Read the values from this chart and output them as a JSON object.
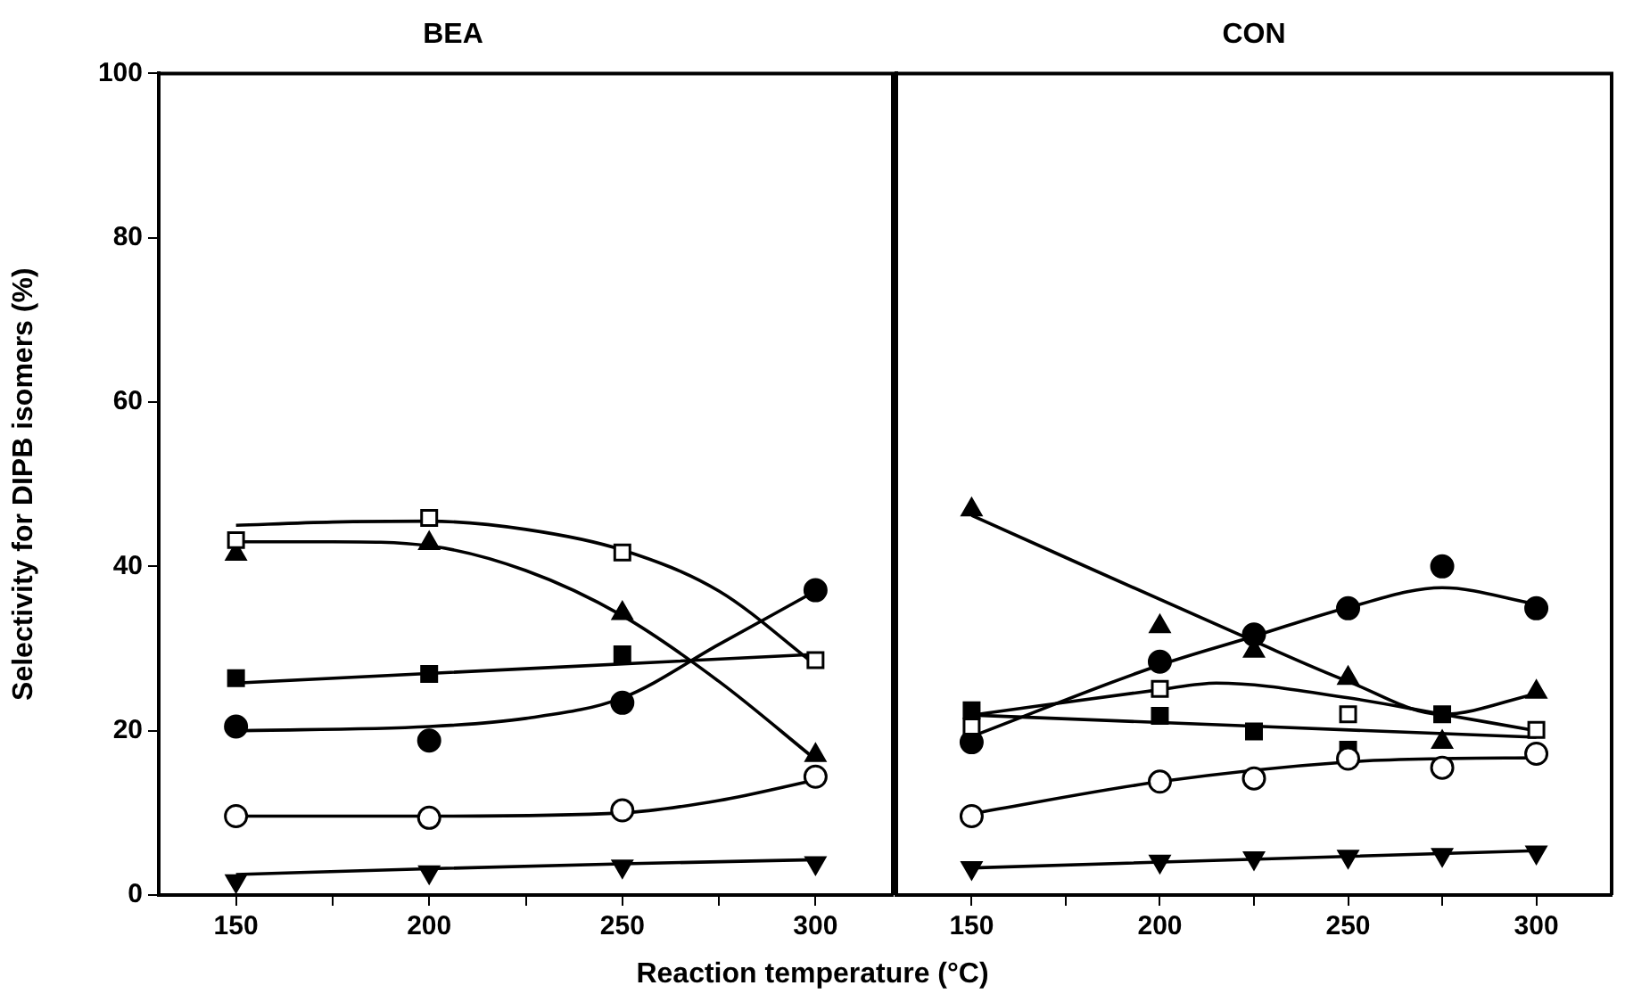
{
  "chart_data": [
    {
      "type": "scatter",
      "title": "BEA",
      "xlabel": "Reaction temperature (°C)",
      "ylabel": "Selectivity for DIPB isomers (%)",
      "xlim": [
        130,
        320
      ],
      "xticks": [
        150,
        {
          "value": 175,
          "label": null
        },
        200,
        {
          "value": 225,
          "label": null
        },
        250,
        {
          "value": 275,
          "label": null
        },
        300
      ],
      "ylim": [
        0,
        100
      ],
      "yticks": [
        0,
        20,
        40,
        60,
        80,
        100
      ],
      "series": [
        {
          "type": "line",
          "marker": "none",
          "color": "#000000",
          "x": [
            150,
            175,
            200,
            225,
            250,
            275,
            300
          ],
          "values": [
            45,
            45.4,
            45.5,
            44.5,
            42,
            37,
            28
          ]
        },
        {
          "type": "line",
          "marker": "none",
          "color": "#000000",
          "x": [
            150,
            175,
            200,
            225,
            250,
            275,
            300
          ],
          "values": [
            43,
            43,
            42.5,
            39.5,
            34,
            26,
            16.5
          ]
        },
        {
          "type": "line",
          "marker": "none",
          "color": "#000000",
          "x": [
            150,
            300
          ],
          "values": [
            25.8,
            29.3
          ]
        },
        {
          "type": "line",
          "marker": "none",
          "color": "#000000",
          "x": [
            150,
            200,
            225,
            250,
            275,
            300
          ],
          "values": [
            20,
            20.5,
            21.5,
            24,
            30.5,
            37
          ]
        },
        {
          "type": "line",
          "marker": "none",
          "color": "#000000",
          "x": [
            150,
            200,
            250,
            275,
            300
          ],
          "values": [
            9.6,
            9.6,
            10,
            11.5,
            14
          ]
        },
        {
          "type": "line",
          "marker": "none",
          "color": "#000000",
          "x": [
            150,
            200,
            250,
            300
          ],
          "values": [
            2.5,
            3.2,
            3.8,
            4.3
          ]
        },
        {
          "type": "scatter",
          "marker": "triangle",
          "color": "#000000",
          "x": [
            150,
            200,
            250,
            300
          ],
          "values": [
            41.5,
            42.8,
            34.3,
            17
          ]
        },
        {
          "type": "scatter",
          "marker": "square",
          "color": "#000000",
          "x": [
            150,
            200,
            250
          ],
          "values": [
            26.4,
            26.9,
            29.3
          ]
        },
        {
          "type": "scatter",
          "marker": "circle",
          "color": "#000000",
          "x": [
            150,
            200,
            250,
            300
          ],
          "values": [
            20.5,
            18.8,
            23.4,
            37.1
          ]
        },
        {
          "type": "scatter",
          "marker": "circle",
          "color": "#ffffff",
          "x": [
            150,
            200,
            250,
            300
          ],
          "values": [
            9.6,
            9.4,
            10.3,
            14.4
          ]
        },
        {
          "type": "scatter",
          "marker": "triangle-down",
          "color": "#000000",
          "x": [
            150,
            200,
            250,
            300
          ],
          "values": [
            1.7,
            2.8,
            3.5,
            3.9
          ]
        },
        {
          "type": "scatter",
          "marker": "square",
          "color": "#ffffff",
          "x": [
            150,
            200,
            250,
            300
          ],
          "values": [
            43.2,
            45.9,
            41.7,
            28.6
          ]
        }
      ]
    },
    {
      "type": "scatter",
      "title": "CON",
      "tick_labels": "x",
      "xlim": [
        130,
        320
      ],
      "xticks": [
        150,
        {
          "value": 175,
          "label": null
        },
        200,
        {
          "value": 225,
          "label": null
        },
        250,
        {
          "value": 275,
          "label": null
        },
        300
      ],
      "ylim": [
        0,
        100
      ],
      "yticks": [
        0,
        20,
        40,
        60,
        80,
        100
      ],
      "series": [
        {
          "type": "line",
          "marker": "none",
          "color": "#000000",
          "x": [
            150,
            225,
            250,
            275,
            300
          ],
          "values": [
            46.2,
            30.9,
            26,
            22,
            24.5
          ]
        },
        {
          "type": "line",
          "marker": "none",
          "color": "#000000",
          "x": [
            150,
            200,
            225,
            250,
            275,
            300
          ],
          "values": [
            19.3,
            28,
            31.5,
            35,
            37.4,
            35.4
          ]
        },
        {
          "type": "line",
          "marker": "none",
          "color": "#000000",
          "x": [
            150,
            200,
            215,
            250,
            275,
            300
          ],
          "values": [
            21.9,
            25,
            25.8,
            24,
            22,
            20
          ]
        },
        {
          "type": "line",
          "marker": "none",
          "color": "#000000",
          "x": [
            150,
            300
          ],
          "values": [
            21.9,
            19.2
          ]
        },
        {
          "type": "line",
          "marker": "none",
          "color": "#000000",
          "x": [
            150,
            200,
            250,
            275,
            300
          ],
          "values": [
            9.9,
            13.8,
            16.2,
            16.6,
            16.7
          ]
        },
        {
          "type": "line",
          "marker": "none",
          "color": "#000000",
          "x": [
            150,
            300
          ],
          "values": [
            3.3,
            5.4
          ]
        },
        {
          "type": "scatter",
          "marker": "triangle",
          "color": "#000000",
          "x": [
            150,
            200,
            225,
            250,
            275,
            300
          ],
          "values": [
            46.9,
            32.7,
            29.7,
            26.4,
            18.6,
            24.7
          ]
        },
        {
          "type": "scatter",
          "marker": "circle",
          "color": "#000000",
          "x": [
            150,
            200,
            225,
            250,
            275,
            300
          ],
          "values": [
            18.6,
            28.4,
            31.7,
            34.9,
            40,
            34.9
          ]
        },
        {
          "type": "scatter",
          "marker": "square",
          "color": "#000000",
          "x": [
            150,
            200,
            225,
            250,
            275
          ],
          "values": [
            22.5,
            21.8,
            19.9,
            17.7,
            22
          ]
        },
        {
          "type": "scatter",
          "marker": "square",
          "color": "#ffffff",
          "x": [
            150,
            200,
            250,
            300
          ],
          "values": [
            20.5,
            25.1,
            22,
            20.1
          ]
        },
        {
          "type": "scatter",
          "marker": "circle",
          "color": "#ffffff",
          "x": [
            150,
            200,
            225,
            250,
            275,
            300
          ],
          "values": [
            9.6,
            13.8,
            14.2,
            16.6,
            15.5,
            17.2
          ]
        },
        {
          "type": "scatter",
          "marker": "triangle-down",
          "color": "#000000",
          "x": [
            150,
            200,
            225,
            250,
            275,
            300
          ],
          "values": [
            3.3,
            4.1,
            4.5,
            4.7,
            4.9,
            5.2
          ]
        }
      ]
    }
  ]
}
